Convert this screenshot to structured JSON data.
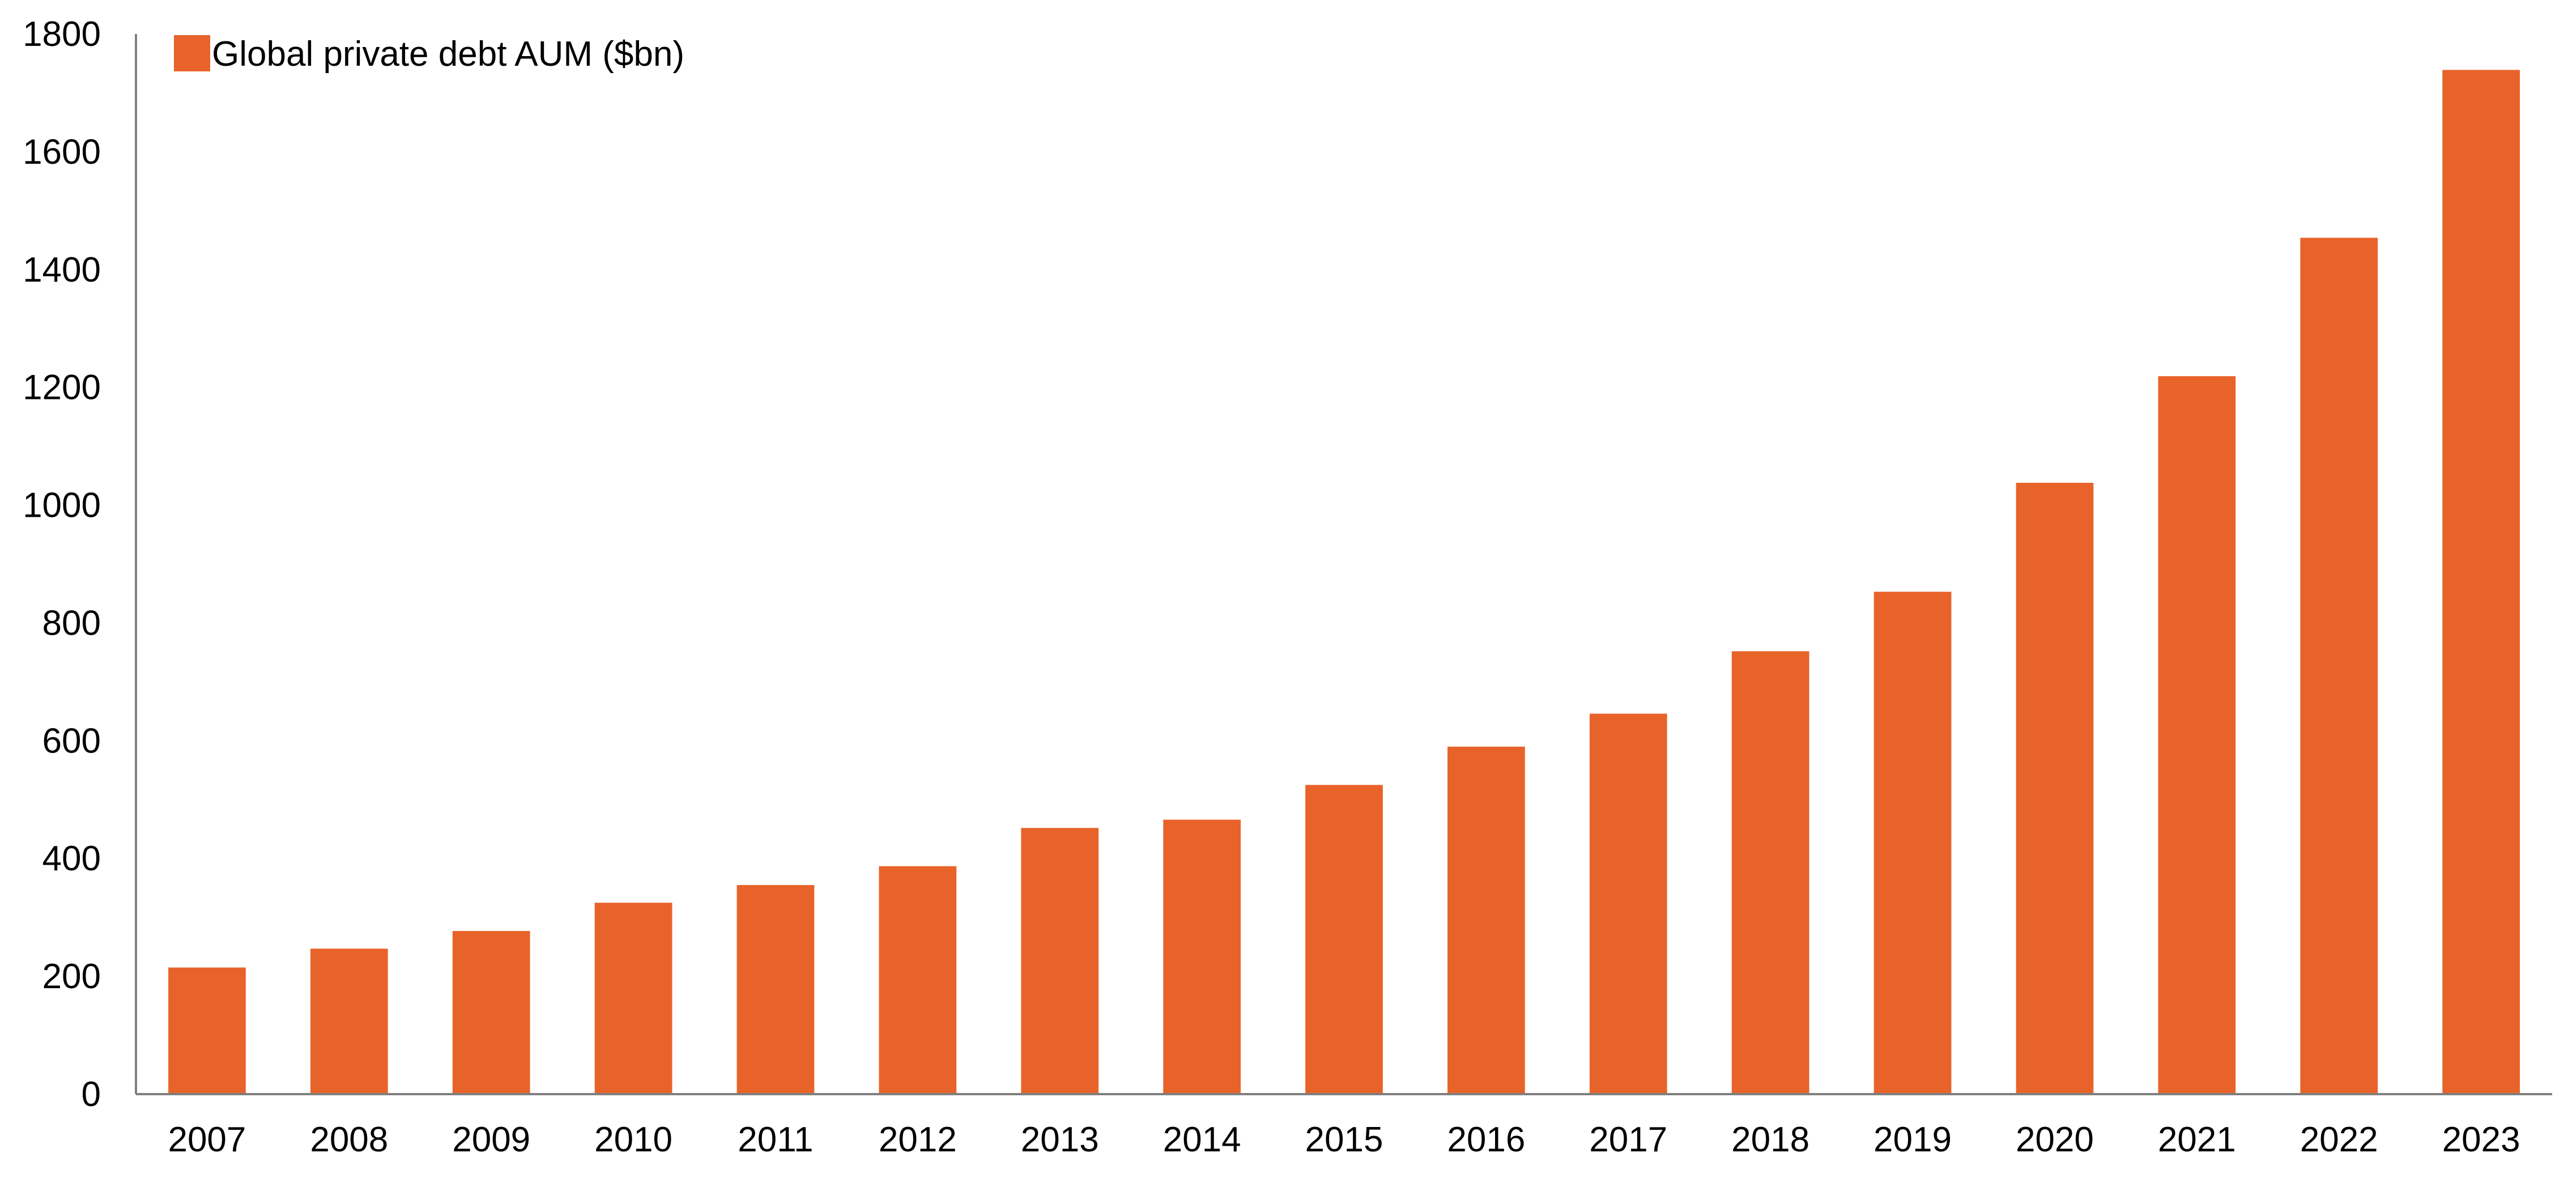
{
  "colors": {
    "bar": "#E8632A",
    "axis": "#7F7F7F",
    "text": "#000000",
    "background": "#FFFFFF"
  },
  "legend": {
    "label": "Global private debt AUM ($bn)",
    "placement": "top-left"
  },
  "chart_data": {
    "type": "bar",
    "title": "",
    "xlabel": "",
    "ylabel": "",
    "categories": [
      "2007",
      "2008",
      "2009",
      "2010",
      "2011",
      "2012",
      "2013",
      "2014",
      "2015",
      "2016",
      "2017",
      "2018",
      "2019",
      "2020",
      "2021",
      "2022",
      "2023"
    ],
    "series": [
      {
        "name": "Global private debt AUM ($bn)",
        "values": [
          215,
          247,
          277,
          325,
          355,
          387,
          452,
          466,
          525,
          590,
          646,
          752,
          853,
          1038,
          1219,
          1454,
          1739
        ]
      }
    ],
    "ylim": [
      0,
      1800
    ],
    "yticks": [
      0,
      200,
      400,
      600,
      800,
      1000,
      1200,
      1400,
      1600,
      1800
    ],
    "grid": false
  }
}
